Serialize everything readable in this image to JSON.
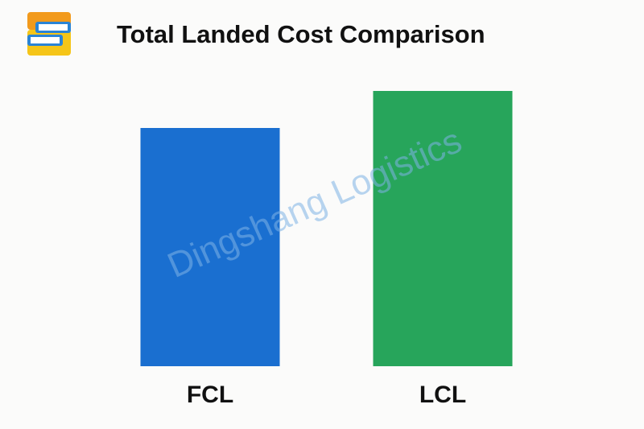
{
  "chart_data": {
    "type": "bar",
    "title": "Total Landed Cost Comparison",
    "categories": [
      "FCL",
      "LCL"
    ],
    "values": [
      296,
      342
    ],
    "colors": [
      "#1a6fd0",
      "#27a55b"
    ],
    "watermark": "Dingshang Logistics"
  }
}
